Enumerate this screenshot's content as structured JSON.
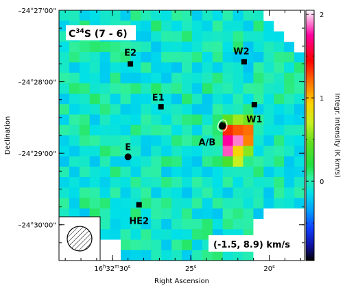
{
  "chart_data": {
    "type": "heatmap",
    "title": "C³⁴S (7 - 6)",
    "title_parts": {
      "main": "C",
      "sup": "34",
      "rest": "S (7 - 6)"
    },
    "title_color": "#ff3b1f",
    "xlabel": "Right Ascension",
    "ylabel": "Declination",
    "colorbar_label": "Integr. Intensity (K km/s)",
    "colorbar_range": [
      -0.95,
      2.05
    ],
    "colorbar_ticks": [
      {
        "value": 0,
        "label": "0"
      },
      {
        "value": 1,
        "label": "1"
      },
      {
        "value": 2,
        "label": "2"
      }
    ],
    "x_ticks": [
      {
        "value": 30,
        "parts": [
          "16",
          "h",
          "32",
          "m",
          "30",
          "s"
        ],
        "label": "16h32m30s"
      },
      {
        "value": 25,
        "parts": [
          "",
          "",
          "",
          "",
          "25",
          "s"
        ],
        "label": "25s"
      },
      {
        "value": 20,
        "parts": [
          "",
          "",
          "",
          "",
          "20",
          "s"
        ],
        "label": "20s"
      }
    ],
    "x_range_seconds": [
      33.4,
      17.75
    ],
    "y_range_arcmin": [
      -30.5,
      -27.0
    ],
    "y_ticks": [
      {
        "value": -27,
        "label": "–24°27'00\""
      },
      {
        "value": -28,
        "label": "–24°28'00\""
      },
      {
        "value": -29,
        "label": "–24°29'00\""
      },
      {
        "value": -30,
        "label": "–24°30'00\""
      }
    ],
    "velocity_label": "(-1.5, 8.9) km/s",
    "grid": {
      "cols": 24,
      "rows": 24,
      "base_value": -0.05,
      "noise": 0.18
    },
    "hotspot": [
      {
        "col": 16,
        "row": 10,
        "value": 0.45
      },
      {
        "col": 17,
        "row": 10,
        "value": 0.6
      },
      {
        "col": 18,
        "row": 10,
        "value": 0.5
      },
      {
        "col": 16,
        "row": 11,
        "value": 1.35
      },
      {
        "col": 17,
        "row": 11,
        "value": 1.25
      },
      {
        "col": 18,
        "row": 11,
        "value": 1.2
      },
      {
        "col": 16,
        "row": 12,
        "value": 1.75
      },
      {
        "col": 17,
        "row": 12,
        "value": 1.9
      },
      {
        "col": 18,
        "row": 12,
        "value": 1.15
      },
      {
        "col": 16,
        "row": 13,
        "value": 1.85
      },
      {
        "col": 17,
        "row": 13,
        "value": 0.9
      },
      {
        "col": 18,
        "row": 13,
        "value": 0.55
      },
      {
        "col": 16,
        "row": 14,
        "value": 0.35
      },
      {
        "col": 17,
        "row": 14,
        "value": 0.7
      }
    ],
    "sources": [
      {
        "name": "E2",
        "ra_s": 28.85,
        "dec_arcmin": -27.75,
        "marker": "square"
      },
      {
        "name": "W2",
        "ra_s": 21.6,
        "dec_arcmin": -27.72,
        "marker": "square"
      },
      {
        "name": "E1",
        "ra_s": 26.9,
        "dec_arcmin": -28.35,
        "marker": "square"
      },
      {
        "name": "W1",
        "ra_s": 20.95,
        "dec_arcmin": -28.32,
        "marker": "square"
      },
      {
        "name": "A/B",
        "ra_s": 23.0,
        "dec_arcmin": -28.62,
        "marker": "circle"
      },
      {
        "name": "E",
        "ra_s": 29.0,
        "dec_arcmin": -29.05,
        "marker": "circle"
      },
      {
        "name": "HE2",
        "ra_s": 28.3,
        "dec_arcmin": -29.72,
        "marker": "square"
      }
    ],
    "beam_inset": true
  }
}
